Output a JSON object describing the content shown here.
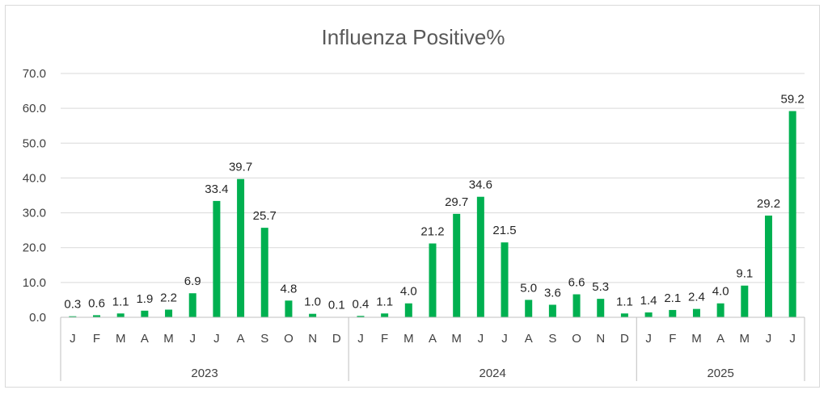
{
  "chart_data": {
    "type": "bar",
    "title": "Influenza Positive%",
    "xlabel": "",
    "ylabel": "",
    "ylim": [
      0,
      70
    ],
    "yticks": [
      "0.0",
      "10.0",
      "20.0",
      "30.0",
      "40.0",
      "50.0",
      "60.0",
      "70.0"
    ],
    "grid": true,
    "legend": "none",
    "bar_color": "#00b050",
    "groups": [
      {
        "label": "2023",
        "count": 12
      },
      {
        "label": "2024",
        "count": 12
      },
      {
        "label": "2025",
        "count": 7
      }
    ],
    "categories": [
      "J",
      "F",
      "M",
      "A",
      "M",
      "J",
      "J",
      "A",
      "S",
      "O",
      "N",
      "D",
      "J",
      "F",
      "M",
      "A",
      "M",
      "J",
      "J",
      "A",
      "S",
      "O",
      "N",
      "D",
      "J",
      "F",
      "M",
      "A",
      "M",
      "J",
      "J"
    ],
    "values": [
      0.3,
      0.6,
      1.1,
      1.9,
      2.2,
      6.9,
      33.4,
      39.7,
      25.7,
      4.8,
      1.0,
      0.1,
      0.4,
      1.1,
      4.0,
      21.2,
      29.7,
      34.6,
      21.5,
      5.0,
      3.6,
      6.6,
      5.3,
      1.1,
      1.4,
      2.1,
      2.4,
      4.0,
      9.1,
      29.2,
      59.2
    ],
    "labels": [
      "0.3",
      "0.6",
      "1.1",
      "1.9",
      "2.2",
      "6.9",
      "33.4",
      "39.7",
      "25.7",
      "4.8",
      "1.0",
      "0.1",
      "0.4",
      "1.1",
      "4.0",
      "21.2",
      "29.7",
      "34.6",
      "21.5",
      "5.0",
      "3.6",
      "6.6",
      "5.3",
      "1.1",
      "1.4",
      "2.1",
      "2.4",
      "4.0",
      "9.1",
      "29.2",
      "59.2"
    ]
  }
}
